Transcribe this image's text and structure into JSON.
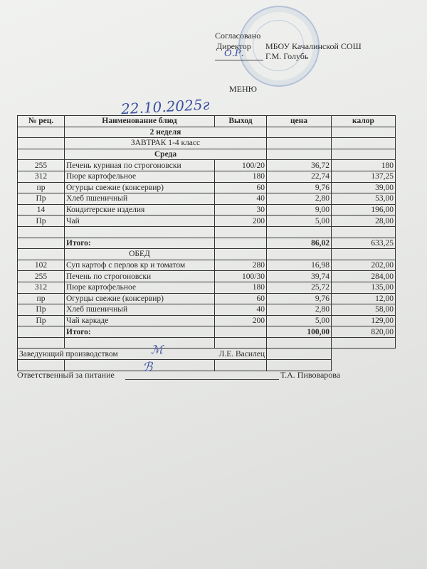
{
  "approval": {
    "agreed": "Согласовано",
    "position": "Директор",
    "org": "МБОУ Качалинской СОШ",
    "director_name": "Г.М. Голубь",
    "signature": "О.Р."
  },
  "title": "МЕНЮ",
  "date_handwritten": "22.10.2025г",
  "table": {
    "headers": [
      "№ рец.",
      "Наименование блюд",
      "Выход",
      "цена",
      "калор"
    ],
    "week": "2 неделя",
    "breakfast_title": "ЗАВТРАК 1-4 класс",
    "day": "Среда",
    "breakfast": [
      [
        "255",
        "Печень куриная  по строгоновски",
        "100/20",
        "36,72",
        "180"
      ],
      [
        "312",
        "Пюре картофельное",
        "180",
        "22,74",
        "137,25"
      ],
      [
        "пр",
        "Огурцы свежие (консервир)",
        "60",
        "9,76",
        "39,00"
      ],
      [
        "Пр",
        "Хлеб пшеничный",
        "40",
        "2,80",
        "53,00"
      ],
      [
        "14",
        "Кондитерские изделия",
        "30",
        "9,00",
        "196,00"
      ],
      [
        "Пр",
        "Чай",
        "200",
        "5,00",
        "28,00"
      ]
    ],
    "breakfast_total": {
      "label": "Итого:",
      "price": "86,02",
      "kcal": "633,25"
    },
    "lunch_title": "ОБЕД",
    "lunch": [
      [
        "102",
        "Суп картоф с перлов кр и томатом",
        "280",
        "16,98",
        "202,00"
      ],
      [
        "255",
        "Печень по строгоновски",
        "100/30",
        "39,74",
        "284,00"
      ],
      [
        "312",
        "Пюре картофельное",
        "180",
        "25,72",
        "135,00"
      ],
      [
        "пр",
        "Огурцы свежие (консервир)",
        "60",
        "9,76",
        "12,00"
      ],
      [
        "Пр",
        "Хлеб пшеничный",
        "40",
        "2,80",
        "58,00"
      ],
      [
        "Пр",
        "Чай каркаде",
        "200",
        "5,00",
        "129,00"
      ]
    ],
    "lunch_total": {
      "label": "Итого:",
      "price": "100,00",
      "kcal": "820,00"
    }
  },
  "production_head": {
    "label": "Заведующий производством",
    "name": "Л.Е. Василец"
  },
  "nutrition_responsible": {
    "label": "Ответственный за питание",
    "name": "Т.А. Пивоварова"
  },
  "colors": {
    "ink": "#2a2a2a",
    "stamp": "#6e8cbe",
    "signature": "#3a4fa0"
  }
}
